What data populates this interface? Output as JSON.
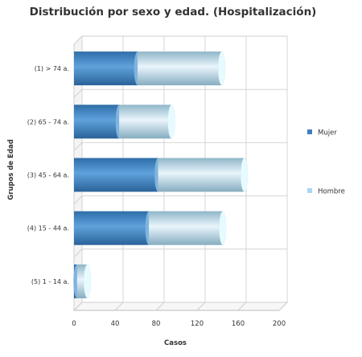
{
  "chart_data": {
    "type": "bar",
    "orientation": "horizontal",
    "stacked": true,
    "style": "3d-cylinder",
    "title": "Distribución por sexo y edad. (Hospitalización)",
    "xlabel": "Casos",
    "ylabel": "Grupos de Edad",
    "xlim": [
      0,
      200
    ],
    "xticks": [
      0,
      40,
      80,
      120,
      160,
      200
    ],
    "grid": true,
    "legend_position": "right",
    "categories": [
      "(1) > 74 a.",
      "(2) 65 - 74 a.",
      "(3) 45 - 64 a.",
      "(4) 15 - 44 a.",
      "(5) 1 - 14 a."
    ],
    "series": [
      {
        "name": "Mujer",
        "color": "#4a8cc8",
        "values": [
          62,
          44,
          82,
          73,
          3
        ]
      },
      {
        "name": "Hombre",
        "color": "#9fd0ef",
        "values": [
          82,
          51,
          84,
          72,
          10
        ]
      }
    ]
  }
}
